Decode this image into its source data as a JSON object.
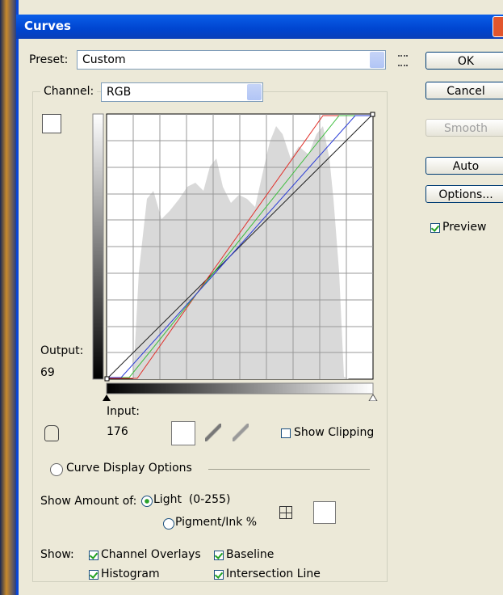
{
  "window": {
    "title": "Curves"
  },
  "preset": {
    "label": "Preset:",
    "value": "Custom"
  },
  "buttons": [
    "OK",
    "Cancel",
    "Smooth",
    "Auto",
    "Options..."
  ],
  "preview": "Preview",
  "channel": {
    "label": "Channel:",
    "value": "RGB"
  },
  "output": {
    "label": "Output:",
    "value": "69"
  },
  "input": {
    "label": "Input:",
    "value": "176"
  },
  "show_clipping": "Show Clipping",
  "display_options": {
    "title": "Curve Display Options",
    "show_amount_label": "Show Amount of:",
    "amount_options": [
      "Light  (0-255)",
      "Pigment/Ink %"
    ],
    "show_label": "Show:",
    "show_items": [
      "Channel Overlays",
      "Baseline",
      "Histogram",
      "Intersection Line"
    ]
  }
}
